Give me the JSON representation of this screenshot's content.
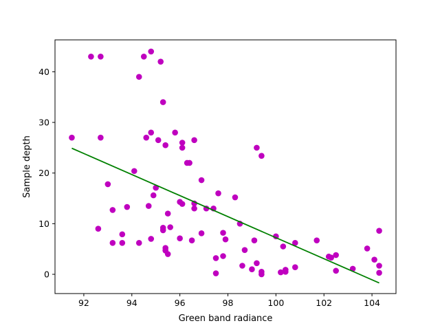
{
  "chart_data": {
    "type": "scatter",
    "xlabel": "Green band radiance",
    "ylabel": "Sample depth",
    "xlim": [
      90.8,
      105.0
    ],
    "ylim": [
      -3.8,
      46.3
    ],
    "xticks": [
      92,
      94,
      96,
      98,
      100,
      102,
      104
    ],
    "yticks": [
      0,
      10,
      20,
      30,
      40
    ],
    "grid": false,
    "point_color": "#bf00bf",
    "line_color": "#008000",
    "points": [
      [
        91.5,
        27.0
      ],
      [
        92.3,
        43.0
      ],
      [
        92.7,
        43.0
      ],
      [
        92.6,
        9.0
      ],
      [
        92.7,
        27.0
      ],
      [
        93.0,
        17.8
      ],
      [
        93.2,
        12.7
      ],
      [
        93.2,
        6.2
      ],
      [
        93.6,
        6.2
      ],
      [
        93.6,
        7.9
      ],
      [
        93.8,
        13.3
      ],
      [
        94.1,
        20.4
      ],
      [
        94.3,
        39.0
      ],
      [
        94.5,
        43.0
      ],
      [
        94.3,
        6.2
      ],
      [
        94.6,
        27.0
      ],
      [
        94.7,
        13.5
      ],
      [
        94.8,
        44.0
      ],
      [
        94.8,
        28.0
      ],
      [
        94.8,
        7.0
      ],
      [
        94.9,
        15.6
      ],
      [
        95.0,
        17.1
      ],
      [
        95.1,
        26.5
      ],
      [
        95.2,
        42.0
      ],
      [
        95.3,
        34.0
      ],
      [
        95.3,
        9.2
      ],
      [
        95.3,
        8.7
      ],
      [
        95.4,
        25.5
      ],
      [
        95.4,
        5.2
      ],
      [
        95.4,
        4.7
      ],
      [
        95.5,
        12.0
      ],
      [
        95.5,
        4.0
      ],
      [
        95.6,
        9.3
      ],
      [
        95.8,
        28.0
      ],
      [
        96.0,
        14.3
      ],
      [
        96.0,
        7.1
      ],
      [
        96.1,
        26.0
      ],
      [
        96.1,
        25.0
      ],
      [
        96.1,
        13.9
      ],
      [
        96.3,
        22.0
      ],
      [
        96.4,
        22.0
      ],
      [
        96.5,
        6.7
      ],
      [
        96.6,
        26.5
      ],
      [
        96.6,
        14.0
      ],
      [
        96.6,
        13.0
      ],
      [
        96.9,
        18.6
      ],
      [
        96.9,
        8.1
      ],
      [
        97.1,
        13.0
      ],
      [
        97.4,
        13.0
      ],
      [
        97.5,
        3.2
      ],
      [
        97.5,
        0.2
      ],
      [
        97.6,
        16.0
      ],
      [
        97.8,
        8.2
      ],
      [
        97.8,
        3.6
      ],
      [
        97.9,
        6.9
      ],
      [
        98.3,
        15.2
      ],
      [
        98.5,
        10.0
      ],
      [
        98.6,
        1.7
      ],
      [
        98.7,
        4.8
      ],
      [
        99.0,
        1.0
      ],
      [
        99.1,
        6.7
      ],
      [
        99.2,
        25.0
      ],
      [
        99.2,
        2.2
      ],
      [
        99.4,
        23.4
      ],
      [
        99.4,
        0.5
      ],
      [
        99.4,
        0.0
      ],
      [
        100.0,
        7.5
      ],
      [
        100.2,
        0.4
      ],
      [
        100.3,
        5.5
      ],
      [
        100.4,
        0.5
      ],
      [
        100.4,
        0.9
      ],
      [
        100.8,
        6.2
      ],
      [
        100.8,
        1.4
      ],
      [
        101.7,
        6.7
      ],
      [
        102.2,
        3.5
      ],
      [
        102.3,
        3.3
      ],
      [
        102.5,
        3.8
      ],
      [
        102.5,
        0.7
      ],
      [
        103.2,
        1.1
      ],
      [
        103.8,
        5.1
      ],
      [
        104.1,
        2.9
      ],
      [
        104.3,
        8.6
      ],
      [
        104.3,
        1.7
      ],
      [
        104.3,
        0.3
      ]
    ],
    "fit_line": {
      "x": [
        91.5,
        104.3
      ],
      "y": [
        24.9,
        -1.7
      ]
    }
  }
}
